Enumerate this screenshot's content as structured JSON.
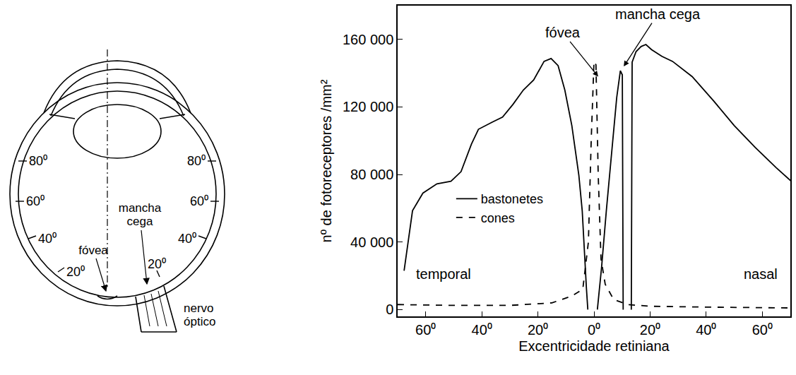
{
  "chart_data": {
    "type": "line",
    "x_label": "Excentricidade retiniana",
    "y_label": "nº de fotoreceptores /mm²",
    "xlim": [
      -70,
      70
    ],
    "xticks": [
      {
        "value": -60,
        "label": "60⁰"
      },
      {
        "value": -40,
        "label": "40⁰"
      },
      {
        "value": -20,
        "label": "20⁰"
      },
      {
        "value": 0,
        "label": "0⁰"
      },
      {
        "value": 20,
        "label": "20⁰"
      },
      {
        "value": 40,
        "label": "40⁰"
      },
      {
        "value": 60,
        "label": "60⁰"
      }
    ],
    "ylim": [
      -4000,
      180000
    ],
    "yticks": [
      0,
      {
        "value": 40000,
        "label": "40 000"
      },
      {
        "value": 80000,
        "label": "80 000"
      },
      {
        "value": 120000,
        "label": "120 000"
      },
      {
        "value": 160000,
        "label": "160 000"
      }
    ],
    "grid": false,
    "legend": "center left",
    "series": [
      {
        "name": "bastonetes",
        "color": "#000000",
        "line_style": "solid",
        "x": [
          -67.7,
          -64.7,
          -61,
          -56,
          -51,
          -47.4,
          -43.7,
          -41.2,
          -36.3,
          -32.6,
          -28.9,
          -25.2,
          -21.5,
          -17.8,
          -15.3,
          -12.8,
          -10.4,
          -7.9,
          -5.4,
          -4.2,
          -2.7,
          -2.2,
          -0.5,
          1.2,
          2.7,
          4.4,
          6.2,
          8.1,
          9.4,
          10.1,
          10.4,
          11.8,
          13.3,
          13.6,
          15,
          16.8,
          18.5,
          20.5,
          24.2,
          28,
          35,
          42.7,
          50,
          57.5,
          65,
          71
        ],
        "values": [
          23000,
          58600,
          69000,
          74500,
          76000,
          81700,
          98000,
          106800,
          111000,
          114000,
          121500,
          130000,
          136000,
          147000,
          148700,
          144500,
          130000,
          109000,
          79600,
          58600,
          12600,
          0,
          null,
          0,
          25000,
          58600,
          92000,
          125600,
          141500,
          139000,
          0,
          null,
          0,
          146600,
          152800,
          155800,
          157000,
          154000,
          150000,
          147000,
          138000,
          123500,
          109000,
          96000,
          84000,
          75000
        ]
      },
      {
        "name": "cones",
        "color": "#000000",
        "line_style": "dash",
        "x": [
          -70,
          -50,
          -30,
          -15,
          -8,
          -4,
          -2,
          -1,
          0,
          0.7,
          1.5,
          2.5,
          4,
          7,
          12,
          20,
          40,
          70
        ],
        "values": [
          3000,
          2500,
          2500,
          4000,
          8000,
          12000,
          40000,
          100000,
          147000,
          145000,
          80000,
          30000,
          15000,
          6000,
          3000,
          2000,
          1500,
          1000
        ]
      }
    ],
    "annotations": [
      {
        "text": "fóvea",
        "x": 1.5,
        "y": 138000
      },
      {
        "text": "mancha cega",
        "x": 10.6,
        "y": 144000
      },
      {
        "text": "temporal",
        "x": -53.6,
        "y": 21000
      },
      {
        "text": "nasal",
        "x": 59.5,
        "y": 21000
      }
    ]
  },
  "diagram": {
    "temporal_degrees": [
      "80⁰",
      "60⁰",
      "40⁰",
      "20⁰"
    ],
    "nasal_degrees": [
      "80⁰",
      "60⁰",
      "40⁰",
      "20⁰"
    ],
    "fovea": "fóvea",
    "blind_spot": "mancha cega",
    "optic_nerve": "nervo óptico"
  }
}
